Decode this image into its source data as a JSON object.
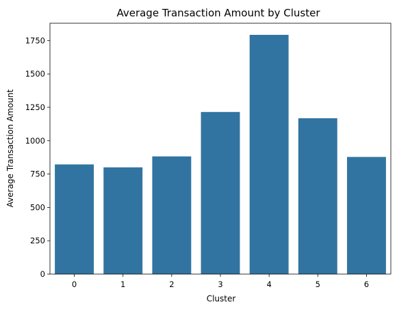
{
  "chart_data": {
    "type": "bar",
    "title": "Average Transaction Amount by Cluster",
    "xlabel": "Cluster",
    "ylabel": "Average Transaction Amount",
    "categories": [
      "0",
      "1",
      "2",
      "3",
      "4",
      "5",
      "6"
    ],
    "values": [
      822,
      800,
      882,
      1215,
      1793,
      1168,
      878
    ],
    "ylim": [
      0,
      1880
    ],
    "yticks": [
      0,
      250,
      500,
      750,
      1000,
      1250,
      1500,
      1750
    ],
    "bar_color": "#3274a1",
    "grid": false,
    "legend": "none"
  }
}
